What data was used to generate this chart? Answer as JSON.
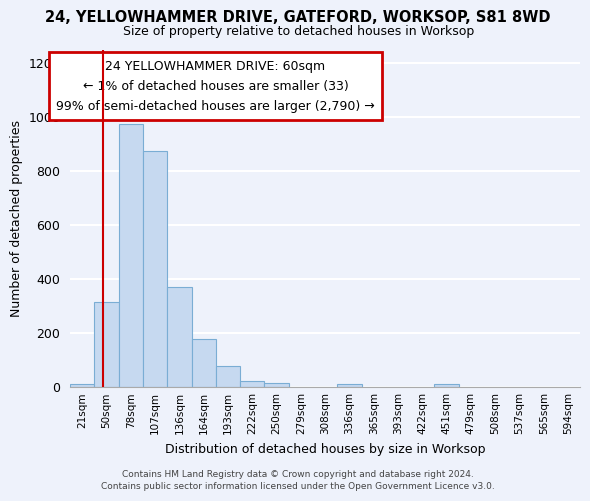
{
  "title": "24, YELLOWHAMMER DRIVE, GATEFORD, WORKSOP, S81 8WD",
  "subtitle": "Size of property relative to detached houses in Worksop",
  "xlabel": "Distribution of detached houses by size in Worksop",
  "ylabel": "Number of detached properties",
  "bin_labels": [
    "21sqm",
    "50sqm",
    "78sqm",
    "107sqm",
    "136sqm",
    "164sqm",
    "193sqm",
    "222sqm",
    "250sqm",
    "279sqm",
    "308sqm",
    "336sqm",
    "365sqm",
    "393sqm",
    "422sqm",
    "451sqm",
    "479sqm",
    "508sqm",
    "537sqm",
    "565sqm",
    "594sqm"
  ],
  "bar_values": [
    10,
    315,
    975,
    875,
    370,
    178,
    78,
    22,
    15,
    0,
    0,
    12,
    0,
    0,
    0,
    12,
    0,
    0,
    0,
    0,
    0
  ],
  "bar_color": "#c6d9f0",
  "bar_edge_color": "#7aadd4",
  "ylim": [
    0,
    1250
  ],
  "yticks": [
    0,
    200,
    400,
    600,
    800,
    1000,
    1200
  ],
  "annotation_text": "24 YELLOWHAMMER DRIVE: 60sqm\n← 1% of detached houses are smaller (33)\n99% of semi-detached houses are larger (2,790) →",
  "annotation_box_color": "#ffffff",
  "annotation_box_edge": "#cc0000",
  "footer_line1": "Contains HM Land Registry data © Crown copyright and database right 2024.",
  "footer_line2": "Contains public sector information licensed under the Open Government Licence v3.0.",
  "background_color": "#eef2fb",
  "grid_color": "#ffffff"
}
